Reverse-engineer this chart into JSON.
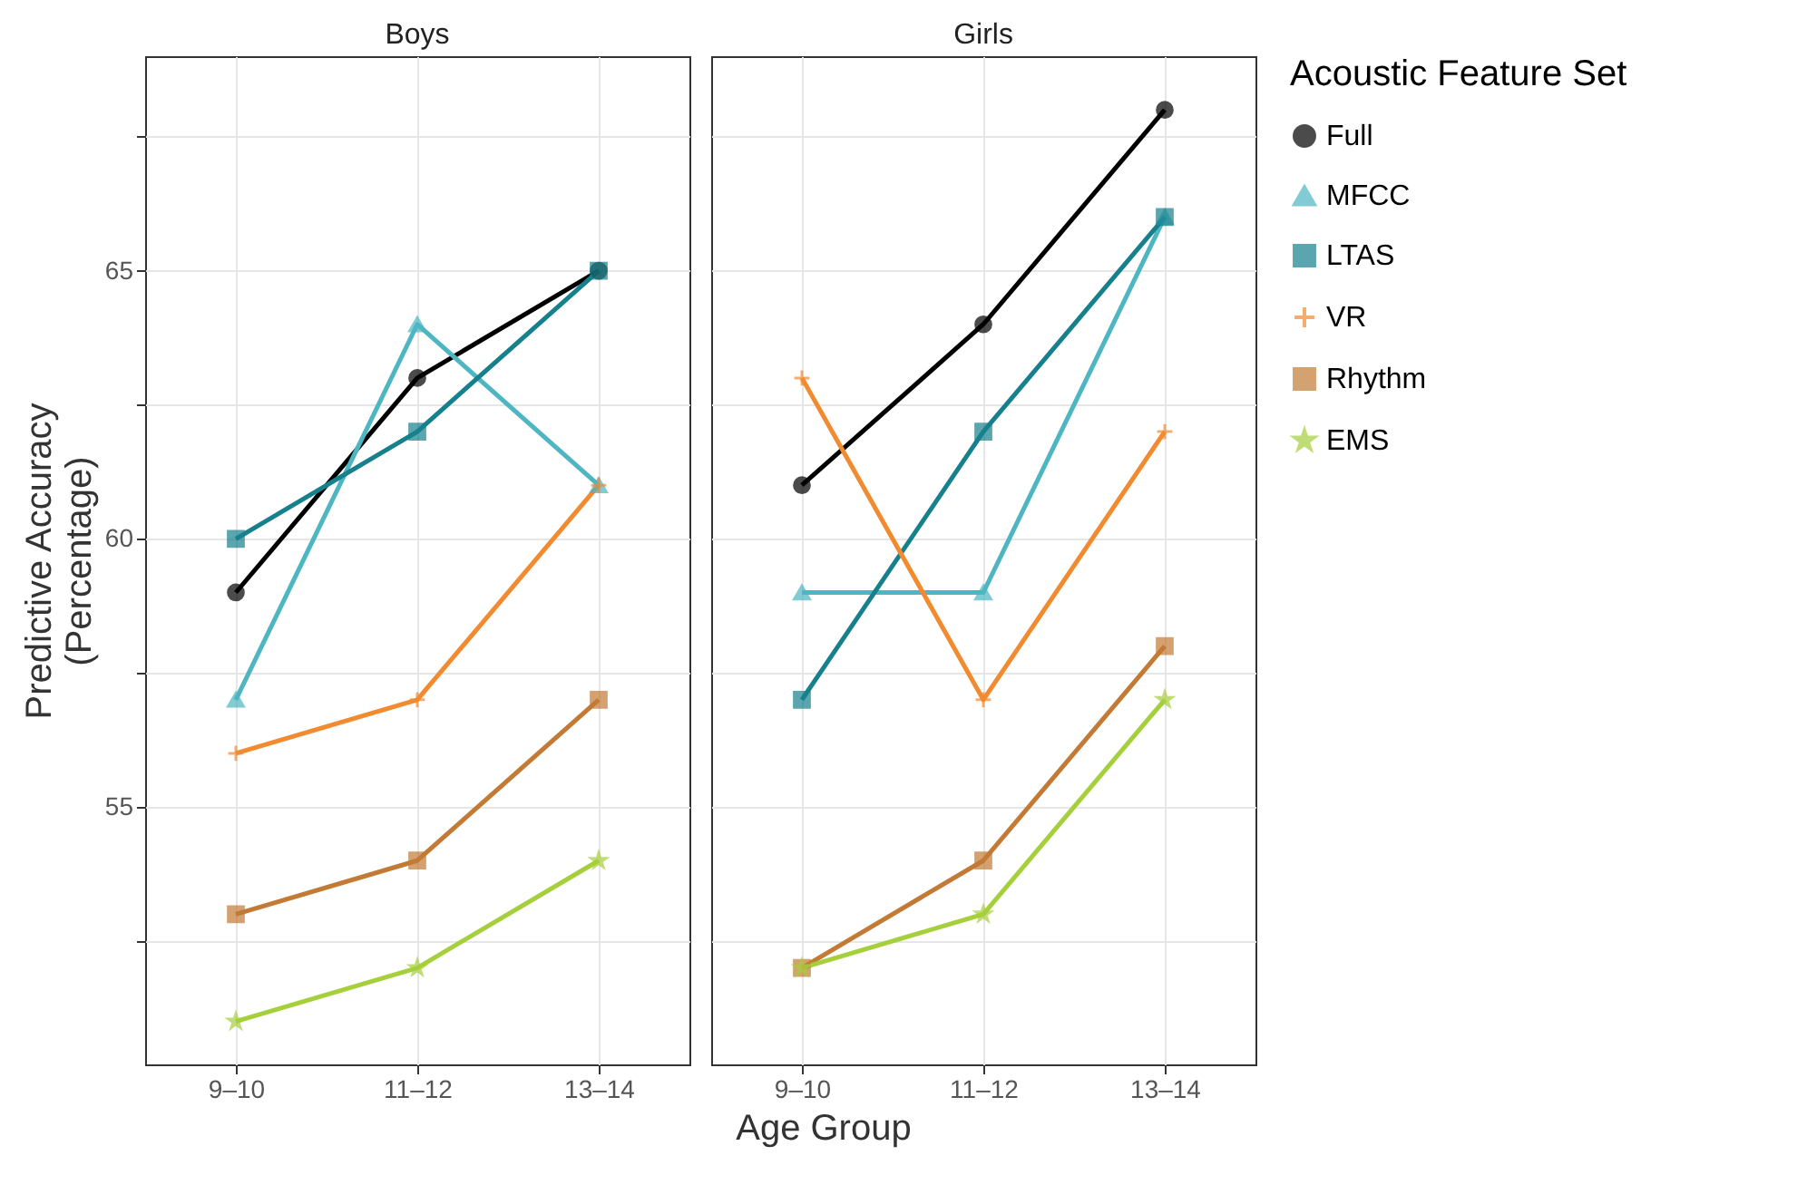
{
  "chart_data": [
    {
      "type": "line",
      "title": "Boys",
      "xlabel": "Age Group",
      "ylabel": "Predictive Accuracy (Percentage)",
      "categories": [
        "9–10",
        "11–12",
        "13–14"
      ],
      "ylim": [
        50.2,
        69
      ],
      "yticks": [
        {
          "value": 52.5,
          "label": null
        },
        55,
        {
          "value": 57.5,
          "label": null
        },
        60,
        {
          "value": 62.5,
          "label": null
        },
        65,
        {
          "value": 67.5,
          "label": null
        }
      ],
      "grid": true,
      "legend": "right",
      "series": [
        {
          "name": "Full",
          "color": "#000000",
          "marker": "circle",
          "values": [
            59,
            63,
            65
          ]
        },
        {
          "name": "MFCC",
          "color": "#4db6c2",
          "marker": "triangle",
          "values": [
            57,
            64,
            61
          ]
        },
        {
          "name": "LTAS",
          "color": "#16808c",
          "marker": "square",
          "values": [
            60,
            62,
            65
          ]
        },
        {
          "name": "VR",
          "color": "#f28a30",
          "marker": "cross",
          "values": [
            56,
            57,
            61
          ]
        },
        {
          "name": "Rhythm",
          "color": "#c27a34",
          "marker": "square",
          "values": [
            53,
            54,
            57
          ]
        },
        {
          "name": "EMS",
          "color": "#a6cf3c",
          "marker": "star",
          "values": [
            51,
            52,
            54
          ]
        }
      ]
    },
    {
      "type": "line",
      "title": "Girls",
      "categories": [
        "9–10",
        "11–12",
        "13–14"
      ],
      "ylim": [
        50.2,
        69
      ],
      "yticks": [
        {
          "value": 52.5,
          "label": null
        },
        55,
        {
          "value": 57.5,
          "label": null
        },
        60,
        {
          "value": 62.5,
          "label": null
        },
        65,
        {
          "value": 67.5,
          "label": null
        }
      ],
      "grid": true,
      "tick_labels": "x",
      "legend": "right",
      "legend_title": "Acoustic Feature Set",
      "series": [
        {
          "name": "Full",
          "color": "#000000",
          "marker": "circle",
          "values": [
            61,
            64,
            68
          ]
        },
        {
          "name": "MFCC",
          "color": "#4db6c2",
          "marker": "triangle",
          "values": [
            59,
            59,
            66
          ]
        },
        {
          "name": "LTAS",
          "color": "#16808c",
          "marker": "square",
          "values": [
            57,
            62,
            66
          ]
        },
        {
          "name": "VR",
          "color": "#f28a30",
          "marker": "cross",
          "values": [
            63,
            57,
            62
          ]
        },
        {
          "name": "Rhythm",
          "color": "#c27a34",
          "marker": "square",
          "values": [
            52,
            54,
            58
          ]
        },
        {
          "name": "EMS",
          "color": "#a6cf3c",
          "marker": "star",
          "values": [
            52,
            53,
            57
          ]
        }
      ]
    }
  ]
}
